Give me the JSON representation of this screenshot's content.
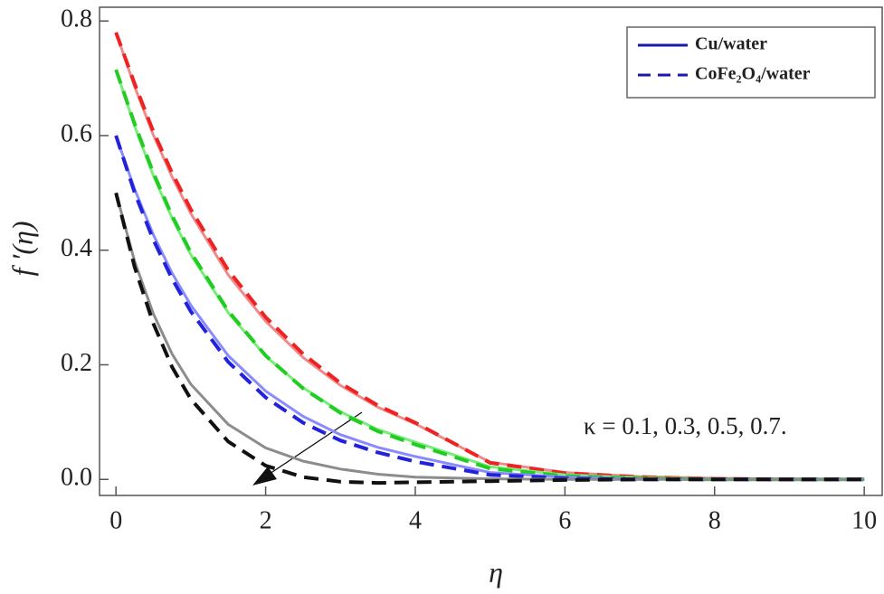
{
  "chart_data": {
    "type": "line",
    "x_label": "η",
    "y_label": "f ′(η)",
    "annotation": "κ = 0.1, 0.3, 0.5, 0.7.",
    "x": [
      0,
      0.25,
      0.5,
      0.75,
      1,
      1.5,
      2,
      2.5,
      3,
      3.5,
      4,
      5,
      6,
      7,
      8,
      9,
      10
    ],
    "series": [
      {
        "color": "#f08a8a",
        "dashed": false,
        "values": [
          0.78,
          0.685,
          0.601,
          0.528,
          0.464,
          0.357,
          0.276,
          0.213,
          0.164,
          0.126,
          0.097,
          0.03,
          0.012,
          0.005,
          0.002,
          0.001,
          0
        ]
      },
      {
        "color": "#ee2222",
        "dashed": true,
        "values": [
          0.78,
          0.69,
          0.607,
          0.535,
          0.471,
          0.365,
          0.283,
          0.219,
          0.168,
          0.129,
          0.099,
          0.029,
          0.011,
          0.004,
          0.001,
          0,
          0
        ]
      },
      {
        "color": "#77ee77",
        "dashed": false,
        "values": [
          0.715,
          0.616,
          0.53,
          0.456,
          0.392,
          0.291,
          0.215,
          0.16,
          0.118,
          0.087,
          0.065,
          0.022,
          0.008,
          0.003,
          0.001,
          0,
          0
        ]
      },
      {
        "color": "#22cc22",
        "dashed": true,
        "values": [
          0.715,
          0.62,
          0.535,
          0.46,
          0.396,
          0.294,
          0.216,
          0.159,
          0.116,
          0.084,
          0.061,
          0.019,
          0.006,
          0.002,
          0,
          0,
          0
        ]
      },
      {
        "color": "#8a8aff",
        "dashed": false,
        "values": [
          0.6,
          0.506,
          0.427,
          0.36,
          0.304,
          0.216,
          0.154,
          0.11,
          0.078,
          0.056,
          0.04,
          0.012,
          0.004,
          0.001,
          0,
          0,
          0
        ]
      },
      {
        "color": "#2222dd",
        "dashed": true,
        "values": [
          0.6,
          0.5,
          0.418,
          0.35,
          0.293,
          0.205,
          0.143,
          0.099,
          0.068,
          0.047,
          0.031,
          0.008,
          0.002,
          0,
          0,
          0,
          0
        ]
      },
      {
        "color": "#8c8c8c",
        "dashed": false,
        "values": [
          0.5,
          0.38,
          0.289,
          0.219,
          0.166,
          0.096,
          0.055,
          0.032,
          0.018,
          0.009,
          0.004,
          0.001,
          0,
          0,
          0,
          0,
          0
        ]
      },
      {
        "color": "#111111",
        "dashed": true,
        "values": [
          0.5,
          0.37,
          0.272,
          0.196,
          0.14,
          0.066,
          0.024,
          0.004,
          -0.004,
          -0.006,
          -0.005,
          -0.003,
          -0.001,
          0,
          0,
          0,
          0
        ]
      }
    ],
    "legend": [
      {
        "label": "Cu/water",
        "color": "#1a1aa8",
        "dashed": false
      },
      {
        "label": "CoFe₂O₄/water",
        "color": "#1a1aa8",
        "dashed": true
      }
    ],
    "xlim": [
      -0.22,
      10.24
    ],
    "ylim": [
      -0.028,
      0.824
    ],
    "xticks": [
      0,
      2,
      4,
      6,
      8,
      10
    ],
    "yticks": [
      {
        "value": 0,
        "label": "0.0"
      },
      0.2,
      0.4,
      0.6,
      0.8
    ],
    "grid": false
  }
}
